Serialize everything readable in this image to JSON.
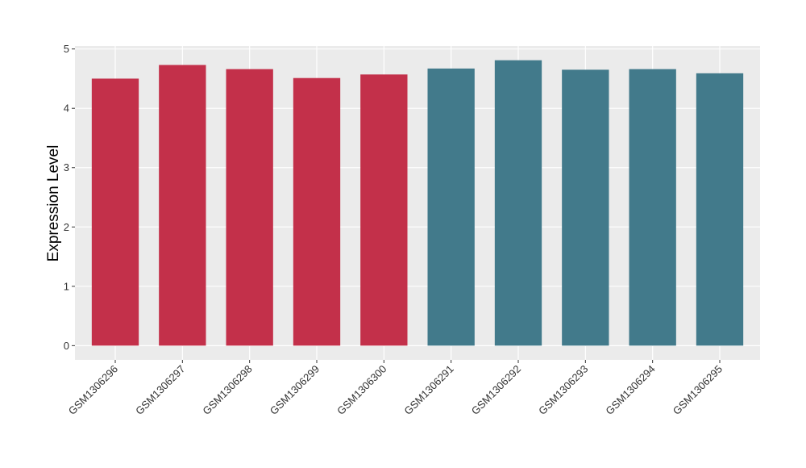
{
  "chart_data": {
    "type": "bar",
    "y_label": "Expression Level",
    "categories": [
      "GSM1306296",
      "GSM1306297",
      "GSM1306298",
      "GSM1306299",
      "GSM1306300",
      "GSM1306291",
      "GSM1306292",
      "GSM1306293",
      "GSM1306294",
      "GSM1306295"
    ],
    "values": [
      4.5,
      4.73,
      4.66,
      4.51,
      4.57,
      4.67,
      4.81,
      4.65,
      4.66,
      4.59
    ],
    "colors": [
      "#c3304a",
      "#c3304a",
      "#c3304a",
      "#c3304a",
      "#c3304a",
      "#427a8b",
      "#427a8b",
      "#427a8b",
      "#427a8b",
      "#427a8b"
    ],
    "ylim": [
      -0.24,
      5.05
    ],
    "yticks": [
      0,
      1,
      2,
      3,
      4,
      5
    ],
    "grid": true
  }
}
